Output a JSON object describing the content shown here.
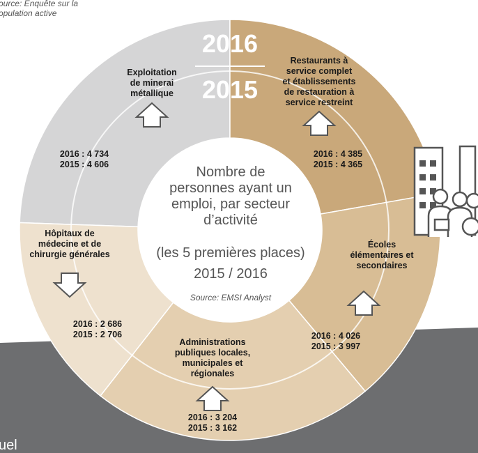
{
  "source_top": [
    "ource: Enquête sur la",
    "opulation active"
  ],
  "years": [
    "2016",
    "2015"
  ],
  "center": {
    "lines": [
      "Nombre de",
      "personnes ayant un",
      "emploi, par secteur",
      "d’activité"
    ],
    "subtitle": "(les 5 premières places)",
    "period": "2015 / 2016",
    "source": "Source: EMSI Analyst"
  },
  "sectors": [
    {
      "name": [
        "Exploitation",
        "de minerai",
        "métallique"
      ],
      "values": [
        "2016 : 4 734",
        "2015 : 4 606"
      ]
    },
    {
      "name": [
        "Restaurants à",
        "service complet",
        "et établissements",
        "de restauration à",
        "service restreint"
      ],
      "values": [
        "2016 : 4 385",
        "2015 : 4 365"
      ]
    },
    {
      "name": [
        "Écoles",
        "élémentaires et",
        "secondaires"
      ],
      "values": [
        "2016 : 4 026",
        "2015 : 3 997"
      ]
    },
    {
      "name": [
        "Administrations",
        "publiques locales,",
        "municipales et",
        "régionales"
      ],
      "values": [
        "2016 : 3 204",
        "2015 : 3 162"
      ]
    },
    {
      "name": [
        "Hôpitaux de",
        "médecine et de",
        "chirurgie générales"
      ],
      "values": [
        "2016 : 2 686",
        "2015 : 2 706"
      ]
    }
  ],
  "footer_fragment": "uel"
}
